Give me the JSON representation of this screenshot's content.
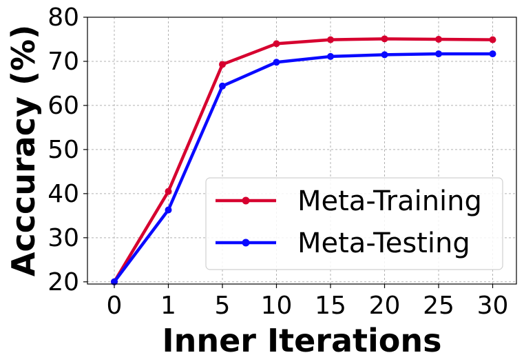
{
  "chart_data": {
    "type": "line",
    "categories": [
      "0",
      "1",
      "5",
      "10",
      "15",
      "20",
      "25",
      "30"
    ],
    "series": [
      {
        "name": "Meta-Training",
        "color": "#d6002f",
        "values": [
          20,
          40.5,
          69.3,
          74.0,
          74.9,
          75.1,
          75.0,
          74.9
        ]
      },
      {
        "name": "Meta-Testing",
        "color": "#0a0aff",
        "values": [
          20,
          36.3,
          64.4,
          69.8,
          71.1,
          71.5,
          71.7,
          71.7
        ]
      }
    ],
    "title": "",
    "xlabel": "Inner Iterations",
    "ylabel": "Acccuracy (%)",
    "ylim": [
      19.5,
      80
    ],
    "yticks": [
      20,
      30,
      40,
      50,
      60,
      70,
      80
    ],
    "grid": true,
    "legend_position": "lower-right"
  }
}
